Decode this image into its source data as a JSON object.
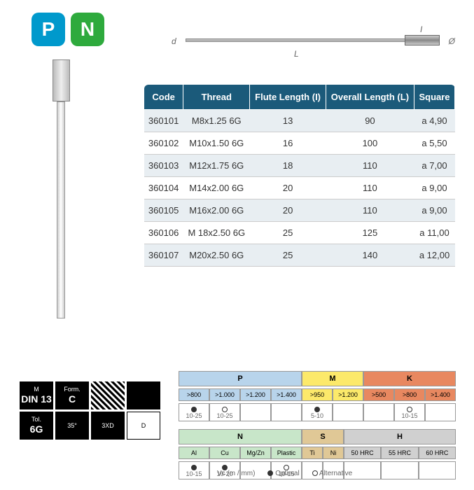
{
  "badges": {
    "p": "P",
    "n": "N"
  },
  "diagram": {
    "d": "d",
    "o": "Ø",
    "L": "L",
    "I": "I"
  },
  "table": {
    "headers": [
      "Code",
      "Thread",
      "Flute Length (I)",
      "Overall Length (L)",
      "Square"
    ],
    "rows": [
      [
        "360101",
        "M8x1.25 6G",
        "13",
        "90",
        "a 4,90"
      ],
      [
        "360102",
        "M10x1.50 6G",
        "16",
        "100",
        "a 5,50"
      ],
      [
        "360103",
        "M12x1.75 6G",
        "18",
        "110",
        "a 7,00"
      ],
      [
        "360104",
        "M14x2.00 6G",
        "20",
        "110",
        "a 9,00"
      ],
      [
        "360105",
        "M16x2.00 6G",
        "20",
        "110",
        "a 9,00"
      ],
      [
        "360106",
        "M 18x2.50 6G",
        "25",
        "125",
        "a 11,00"
      ],
      [
        "360107",
        "M20x2.50 6G",
        "25",
        "140",
        "a 12,00"
      ]
    ]
  },
  "specs": [
    {
      "top": "M",
      "bot": "DIN 13"
    },
    {
      "top": "Form.",
      "bot": "C"
    },
    {
      "top": "",
      "bot": "",
      "hatch": true
    },
    {
      "top": "",
      "bot": ""
    },
    {
      "top": "Tol.",
      "bot": "6G"
    },
    {
      "top": "35°",
      "bot": ""
    },
    {
      "top": "3XD",
      "bot": ""
    },
    {
      "top": "D",
      "bot": "",
      "white": true
    }
  ],
  "mat": {
    "P": {
      "title": "P",
      "subs": [
        ">800",
        ">1.000",
        ">1.200",
        ">1.400"
      ],
      "vals": [
        "10-25",
        "10-25",
        "",
        ""
      ],
      "marks": [
        "filled",
        "open",
        "",
        ""
      ]
    },
    "M": {
      "title": "M",
      "subs": [
        ">950",
        ">1.200"
      ],
      "vals": [
        "5-10",
        ""
      ],
      "marks": [
        "filled",
        ""
      ]
    },
    "K": {
      "title": "K",
      "subs": [
        ">500",
        ">800",
        ">1.400"
      ],
      "vals": [
        "",
        "10-15",
        ""
      ],
      "marks": [
        "",
        "open",
        ""
      ]
    },
    "N": {
      "title": "N",
      "subs": [
        "Al",
        "Cu",
        "Mg/Zn",
        "Plastic"
      ],
      "vals": [
        "10-15",
        "10-20",
        "",
        "10-15"
      ],
      "marks": [
        "filled",
        "filled",
        "",
        "open"
      ]
    },
    "S": {
      "title": "S",
      "subs": [
        "Ti",
        "Ni"
      ],
      "vals": [
        "",
        ""
      ],
      "marks": [
        "",
        ""
      ]
    },
    "H": {
      "title": "H",
      "subs": [
        "50 HRC",
        "55 HRC",
        "60 HRC"
      ],
      "vals": [
        "",
        "",
        ""
      ],
      "marks": [
        "",
        "",
        ""
      ]
    }
  },
  "legend": {
    "vc": "Vc (m / mm)",
    "opt": "Optimal",
    "alt": "Alternative"
  }
}
